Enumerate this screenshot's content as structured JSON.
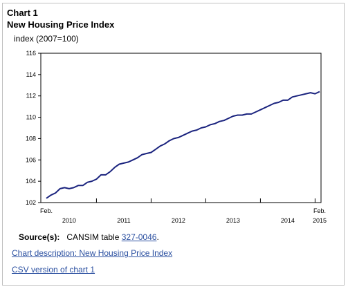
{
  "chart_data": {
    "type": "line",
    "title": "Chart 1",
    "subtitle": "New Housing Price Index",
    "ylabel": "index (2007=100)",
    "ylim": [
      102,
      116
    ],
    "yticks": [
      102,
      104,
      106,
      108,
      110,
      112,
      114,
      116
    ],
    "grid": false,
    "legend": "none",
    "x_start_label": "Feb.",
    "x_end_label": "Feb.",
    "x_year_labels": [
      "2010",
      "2011",
      "2012",
      "2013",
      "2014",
      "2015"
    ],
    "x": [
      "2010-02",
      "2010-03",
      "2010-04",
      "2010-05",
      "2010-06",
      "2010-07",
      "2010-08",
      "2010-09",
      "2010-10",
      "2010-11",
      "2010-12",
      "2011-01",
      "2011-02",
      "2011-03",
      "2011-04",
      "2011-05",
      "2011-06",
      "2011-07",
      "2011-08",
      "2011-09",
      "2011-10",
      "2011-11",
      "2011-12",
      "2012-01",
      "2012-02",
      "2012-03",
      "2012-04",
      "2012-05",
      "2012-06",
      "2012-07",
      "2012-08",
      "2012-09",
      "2012-10",
      "2012-11",
      "2012-12",
      "2013-01",
      "2013-02",
      "2013-03",
      "2013-04",
      "2013-05",
      "2013-06",
      "2013-07",
      "2013-08",
      "2013-09",
      "2013-10",
      "2013-11",
      "2013-12",
      "2014-01",
      "2014-02",
      "2014-03",
      "2014-04",
      "2014-05",
      "2014-06",
      "2014-07",
      "2014-08",
      "2014-09",
      "2014-10",
      "2014-11",
      "2014-12",
      "2015-01",
      "2015-02"
    ],
    "series": [
      {
        "color": "#1a237e",
        "values": [
          102.4,
          102.7,
          102.9,
          103.3,
          103.4,
          103.3,
          103.4,
          103.6,
          103.6,
          103.9,
          104.0,
          104.2,
          104.6,
          104.6,
          104.9,
          105.3,
          105.6,
          105.7,
          105.8,
          106.0,
          106.2,
          106.5,
          106.6,
          106.7,
          107.0,
          107.3,
          107.5,
          107.8,
          108.0,
          108.1,
          108.3,
          108.5,
          108.7,
          108.8,
          109.0,
          109.1,
          109.3,
          109.4,
          109.6,
          109.7,
          109.9,
          110.1,
          110.2,
          110.2,
          110.3,
          110.3,
          110.5,
          110.7,
          110.9,
          111.1,
          111.3,
          111.4,
          111.6,
          111.6,
          111.9,
          112.0,
          112.1,
          112.2,
          112.3,
          112.2,
          112.4
        ]
      }
    ]
  },
  "source": {
    "label": "Source(s):",
    "text_before": "CANSIM table ",
    "link_text": "327-0046",
    "text_after": "."
  },
  "links": {
    "description": "Chart description: New Housing Price Index",
    "csv": "CSV version of chart 1"
  }
}
